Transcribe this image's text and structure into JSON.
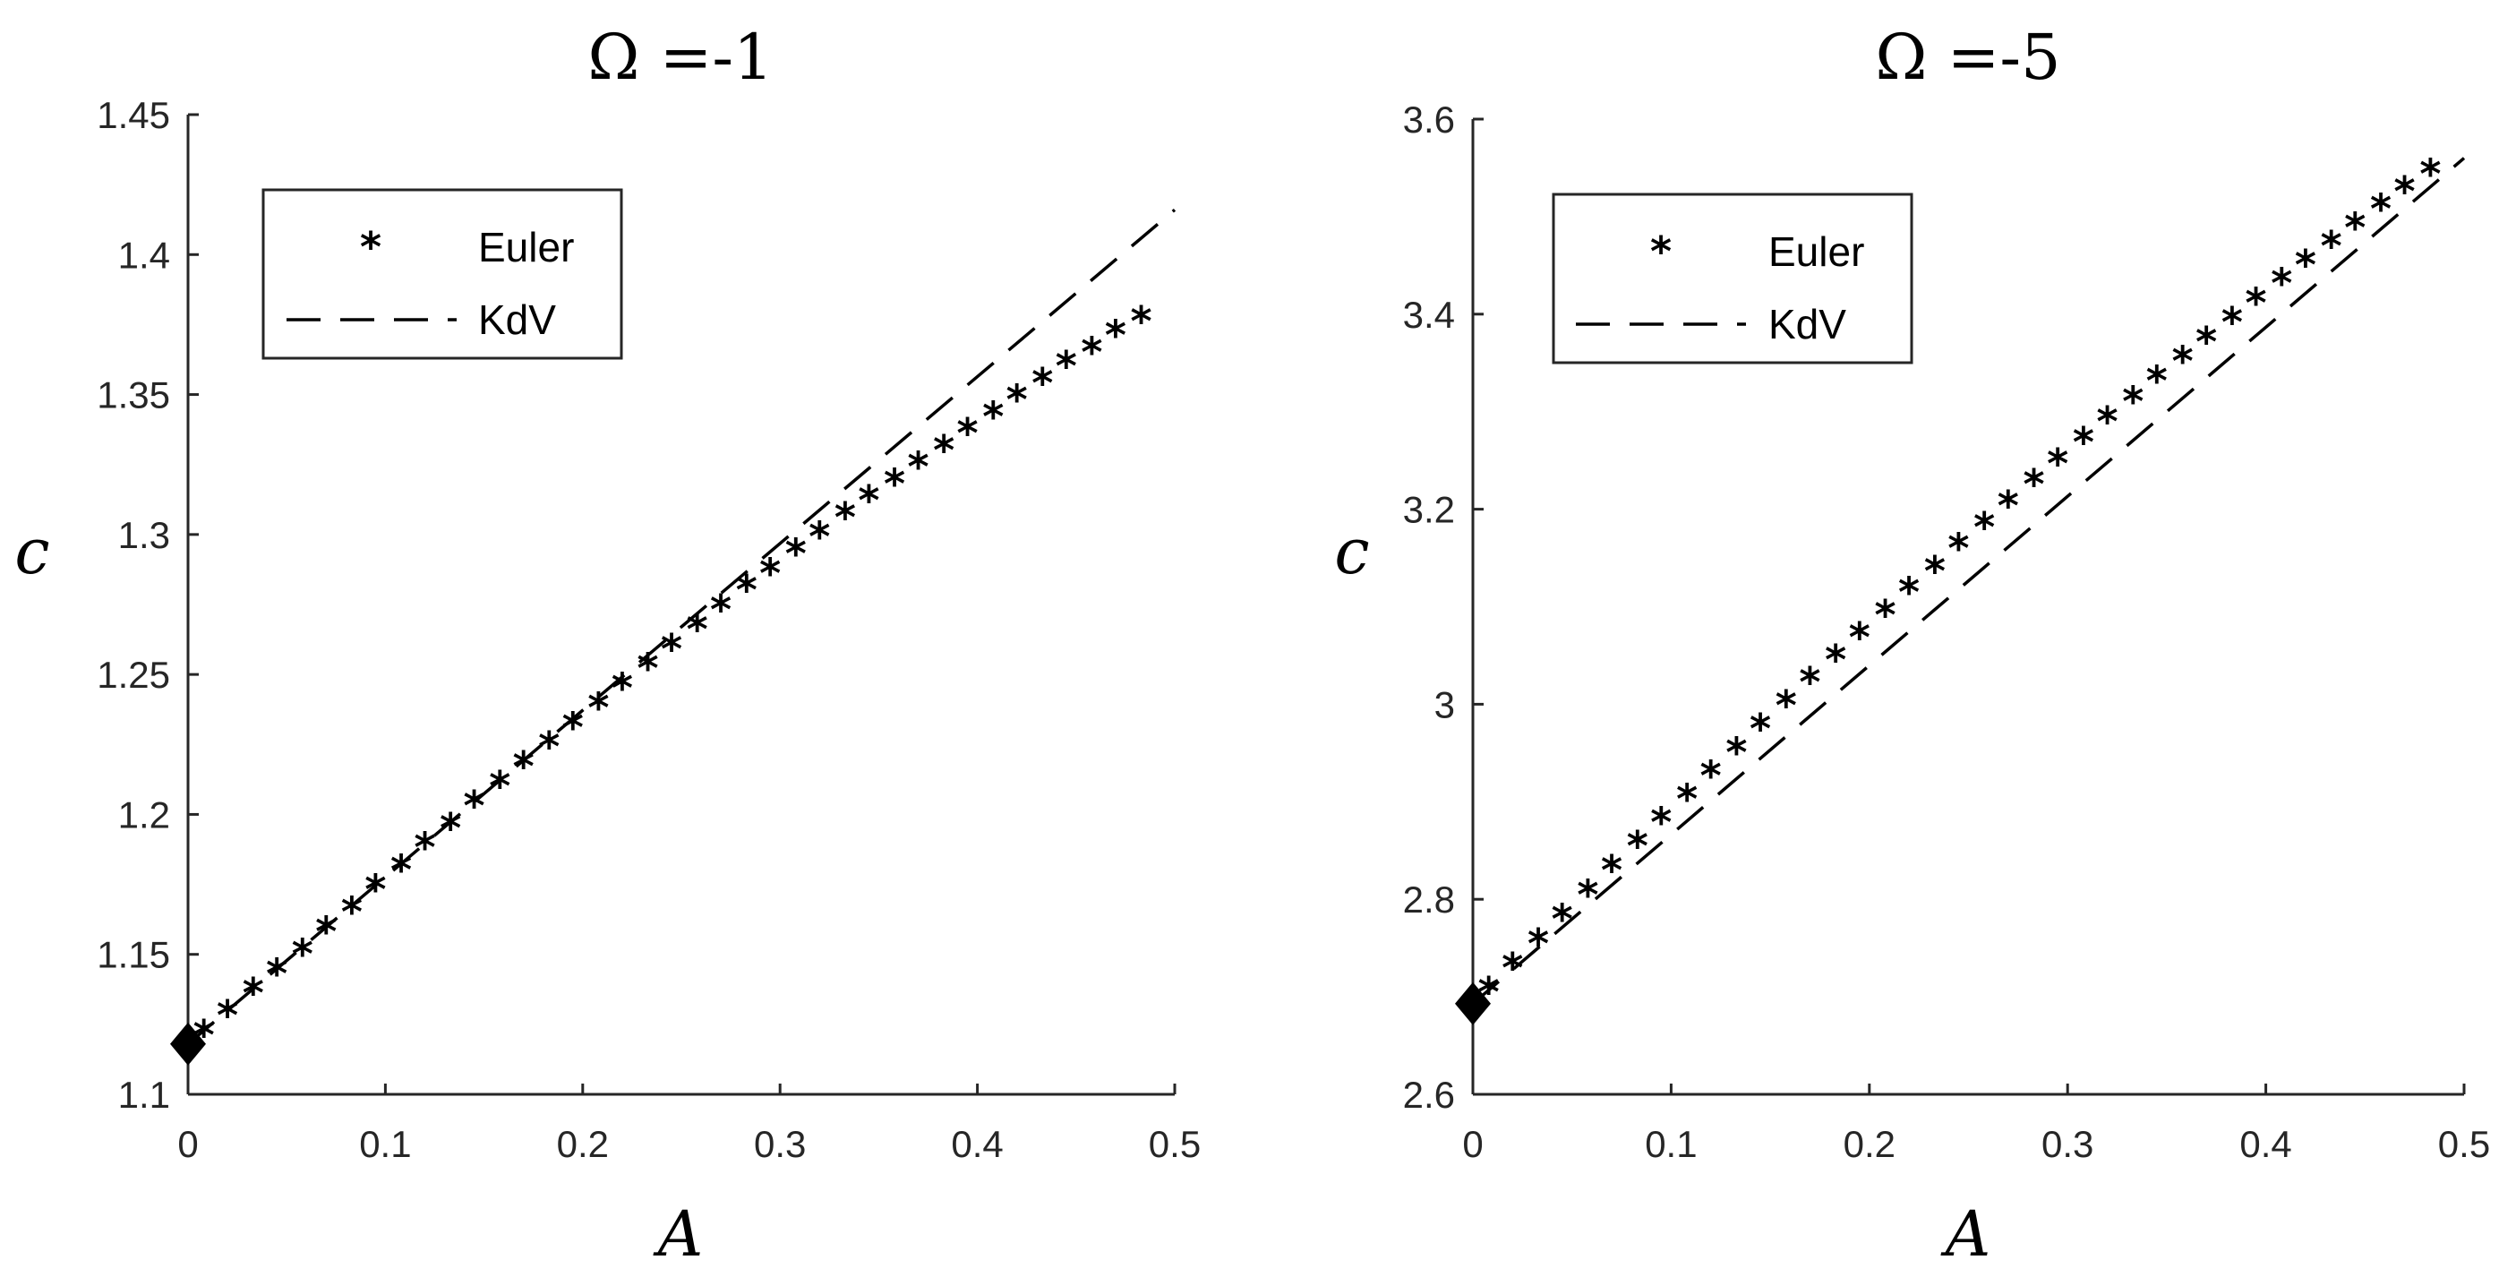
{
  "chart_data": [
    {
      "type": "scatter",
      "title": "Ω =-1",
      "xlabel": "A",
      "ylabel": "c",
      "xlim": [
        0,
        0.5
      ],
      "ylim": [
        1.1,
        1.45
      ],
      "xticks": [
        0,
        0.1,
        0.2,
        0.3,
        0.4,
        0.5
      ],
      "xtick_labels": [
        "0",
        "0.1",
        "0.2",
        "0.3",
        "0.4",
        "0.5"
      ],
      "yticks": [
        1.1,
        1.15,
        1.2,
        1.25,
        1.3,
        1.35,
        1.4,
        1.45
      ],
      "ytick_labels": [
        "1.1",
        "1.15",
        "1.2",
        "1.25",
        "1.3",
        "1.35",
        "1.4",
        "1.45"
      ],
      "legend": {
        "position": "top-left",
        "entries": [
          "Euler",
          "KdV"
        ]
      },
      "grid": false,
      "start_point": {
        "x": 0,
        "y": 1.118,
        "marker": "diamond"
      },
      "series": [
        {
          "name": "Euler",
          "style": "star-markers",
          "x": [
            0.008,
            0.02,
            0.033,
            0.045,
            0.058,
            0.07,
            0.083,
            0.095,
            0.108,
            0.12,
            0.133,
            0.145,
            0.158,
            0.17,
            0.183,
            0.195,
            0.208,
            0.22,
            0.233,
            0.245,
            0.258,
            0.27,
            0.283,
            0.295,
            0.308,
            0.32,
            0.333,
            0.345,
            0.358,
            0.37,
            0.383,
            0.395,
            0.408,
            0.42,
            0.433,
            0.445,
            0.458,
            0.47,
            0.483
          ],
          "y": [
            1.123,
            1.13,
            1.138,
            1.145,
            1.152,
            1.16,
            1.167,
            1.175,
            1.182,
            1.19,
            1.197,
            1.205,
            1.212,
            1.219,
            1.226,
            1.233,
            1.24,
            1.247,
            1.254,
            1.261,
            1.268,
            1.275,
            1.282,
            1.288,
            1.295,
            1.301,
            1.308,
            1.314,
            1.32,
            1.326,
            1.332,
            1.338,
            1.344,
            1.35,
            1.356,
            1.362,
            1.367,
            1.373,
            1.378
          ]
        },
        {
          "name": "KdV",
          "style": "dashed-line",
          "x": [
            0,
            0.5
          ],
          "y": [
            1.118,
            1.416
          ]
        }
      ]
    },
    {
      "type": "scatter",
      "title": "Ω =-5",
      "xlabel": "A",
      "ylabel": "c",
      "xlim": [
        0,
        0.5
      ],
      "ylim": [
        2.6,
        3.6
      ],
      "xticks": [
        0,
        0.1,
        0.2,
        0.3,
        0.4,
        0.5
      ],
      "xtick_labels": [
        "0",
        "0.1",
        "0.2",
        "0.3",
        "0.4",
        "0.5"
      ],
      "yticks": [
        2.6,
        2.8,
        3.0,
        3.2,
        3.4,
        3.6
      ],
      "ytick_labels": [
        "2.6",
        "2.8",
        "3",
        "3.2",
        "3.4",
        "3.6"
      ],
      "legend": {
        "position": "top-left",
        "entries": [
          "Euler",
          "KdV"
        ]
      },
      "grid": false,
      "start_point": {
        "x": 0,
        "y": 2.693,
        "marker": "diamond"
      },
      "series": [
        {
          "name": "Euler",
          "style": "star-markers",
          "x": [
            0.008,
            0.02,
            0.033,
            0.045,
            0.058,
            0.07,
            0.083,
            0.095,
            0.108,
            0.12,
            0.133,
            0.145,
            0.158,
            0.17,
            0.183,
            0.195,
            0.208,
            0.22,
            0.233,
            0.245,
            0.258,
            0.27,
            0.283,
            0.295,
            0.308,
            0.32,
            0.333,
            0.345,
            0.358,
            0.37,
            0.383,
            0.395,
            0.408,
            0.42,
            0.433,
            0.445,
            0.458,
            0.47,
            0.483
          ],
          "y": [
            2.71,
            2.735,
            2.76,
            2.785,
            2.81,
            2.835,
            2.86,
            2.884,
            2.908,
            2.932,
            2.956,
            2.98,
            3.004,
            3.028,
            3.051,
            3.074,
            3.097,
            3.12,
            3.142,
            3.165,
            3.187,
            3.209,
            3.231,
            3.252,
            3.274,
            3.295,
            3.316,
            3.337,
            3.357,
            3.377,
            3.397,
            3.417,
            3.437,
            3.456,
            3.475,
            3.494,
            3.513,
            3.531,
            3.549
          ]
        },
        {
          "name": "KdV",
          "style": "dashed-line",
          "x": [
            0,
            0.5
          ],
          "y": [
            2.693,
            3.56
          ]
        }
      ]
    }
  ]
}
